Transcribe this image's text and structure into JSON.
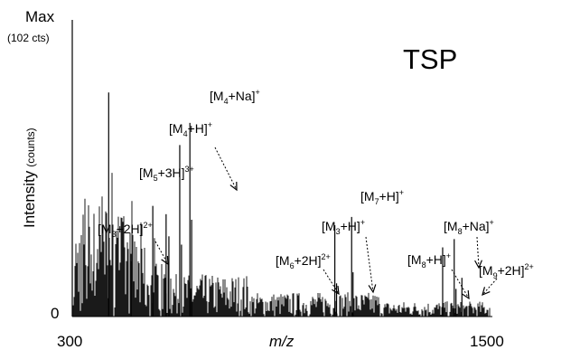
{
  "chart_data": {
    "type": "bar",
    "title": "TSP",
    "xlabel": "m/z",
    "ylabel": "Intensity",
    "ylabel_unit": "(counts)",
    "y_max_label": "Max",
    "y_max_sublabel": "(102 cts)",
    "y_min_label": "0",
    "x_tick_labels": [
      "300",
      "1500"
    ],
    "xlim": [
      300,
      1500
    ],
    "ylim": [
      0,
      102
    ],
    "grid": false,
    "colors": {
      "bars": "#000000",
      "background": "#ffffff"
    },
    "peaks": [
      {
        "x": 404,
        "y": 81
      },
      {
        "x": 468,
        "y": 20
      },
      {
        "x": 530,
        "y": 40
      },
      {
        "x": 568,
        "y": 37
      },
      {
        "x": 576,
        "y": 29
      },
      {
        "x": 607,
        "y": 62
      },
      {
        "x": 612,
        "y": 26
      },
      {
        "x": 636,
        "y": 70
      },
      {
        "x": 641,
        "y": 35
      },
      {
        "x": 946,
        "y": 6
      },
      {
        "x": 1050,
        "y": 33
      },
      {
        "x": 1055,
        "y": 12
      },
      {
        "x": 1098,
        "y": 36
      },
      {
        "x": 1102,
        "y": 16
      },
      {
        "x": 1358,
        "y": 25
      },
      {
        "x": 1391,
        "y": 28
      },
      {
        "x": 1396,
        "y": 10
      },
      {
        "x": 1413,
        "y": 14
      }
    ],
    "annotations": [
      {
        "id": "m3-2h",
        "base": "[M",
        "sub": "3",
        "mid": "+2H]",
        "sup": "2+",
        "peak_x": 468
      },
      {
        "id": "m5-3h",
        "base": "[M",
        "sub": "5",
        "mid": "+3H]",
        "sup": "3+",
        "peak_x": 530
      },
      {
        "id": "m4-h",
        "base": "[M",
        "sub": "4",
        "mid": "+H]",
        "sup": "+",
        "peak_x": 607
      },
      {
        "id": "m4-na",
        "base": "[M",
        "sub": "4",
        "mid": "+Na]",
        "sup": "+",
        "peak_x": 636
      },
      {
        "id": "m6-2h",
        "base": "[M",
        "sub": "6",
        "mid": "+2H]",
        "sup": "2+",
        "peak_x": 946
      },
      {
        "id": "m3-h",
        "base": "[M",
        "sub": "3",
        "mid": "+H]",
        "sup": "+",
        "peak_x": 1050
      },
      {
        "id": "m7-h",
        "base": "[M",
        "sub": "7",
        "mid": "+H]",
        "sup": "+",
        "peak_x": 1098
      },
      {
        "id": "m8-h",
        "base": "[M",
        "sub": "8",
        "mid": "+H]",
        "sup": "+",
        "peak_x": 1358
      },
      {
        "id": "m8-na",
        "base": "[M",
        "sub": "8",
        "mid": "+Na]",
        "sup": "+",
        "peak_x": 1391
      },
      {
        "id": "m9-2h",
        "base": "[M",
        "sub": "9",
        "mid": "+2H]",
        "sup": "2+",
        "peak_x": 1413
      }
    ]
  }
}
